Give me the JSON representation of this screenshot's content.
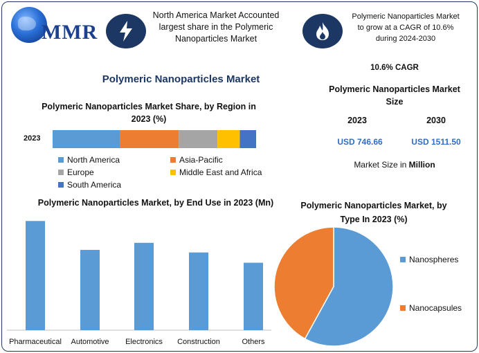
{
  "header": {
    "logo_text": "MMR",
    "callout_left": "North America Market Accounted largest share in the Polymeric Nanoparticles Market",
    "callout_right": "Polymeric Nanoparticles Market to grow at a CAGR of 10.6% during 2024-2030",
    "icon_left": "lightning-icon",
    "icon_right": "flame-icon",
    "icon_bg": "#1c3763"
  },
  "main_title": "Polymeric Nanoparticles Market",
  "stats": {
    "cagr": "10.6% CAGR",
    "size_title": "Polymeric Nanoparticles Market Size",
    "year_start": "2023",
    "year_end": "2030",
    "value_start": "USD 746.66",
    "value_end": "USD 1511.50",
    "unit_prefix": "Market Size in ",
    "unit_bold": "Million"
  },
  "chart_data": [
    {
      "type": "bar",
      "stacked": true,
      "orientation": "horizontal",
      "title": "Polymeric Nanoparticles Market Share, by Region in 2023 (%)",
      "categories": [
        "2023"
      ],
      "series": [
        {
          "name": "North America",
          "values": [
            33
          ],
          "color": "#5b9bd5"
        },
        {
          "name": "Asia-Pacific",
          "values": [
            29
          ],
          "color": "#ed7d31"
        },
        {
          "name": "Europe",
          "values": [
            19
          ],
          "color": "#a5a5a5"
        },
        {
          "name": "Middle East and Africa",
          "values": [
            11
          ],
          "color": "#ffc000"
        },
        {
          "name": "South America",
          "values": [
            8
          ],
          "color": "#4472c4"
        }
      ],
      "legend": "bottom"
    },
    {
      "type": "bar",
      "title": "Polymeric Nanoparticles Market, by End Use in 2023 (Mn)",
      "categories": [
        "Pharmaceutical",
        "Automotive",
        "Electronics",
        "Construction",
        "Others"
      ],
      "values": [
        170,
        125,
        136,
        121,
        105
      ],
      "ylim": [
        0,
        180
      ],
      "color": "#5b9bd5",
      "grid": false
    },
    {
      "type": "pie",
      "title": "Polymeric Nanoparticles Market, by Type In 2023 (%)",
      "labels": [
        "Nanospheres",
        "Nanocapsules"
      ],
      "values": [
        58,
        42
      ],
      "colors": [
        "#5b9bd5",
        "#ed7d31"
      ],
      "legend": "right"
    }
  ]
}
